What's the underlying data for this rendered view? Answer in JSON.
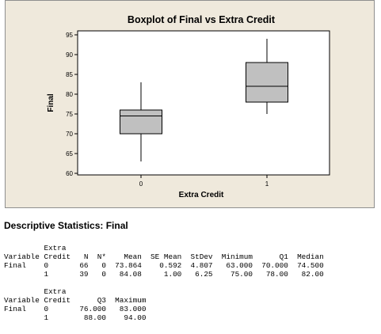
{
  "chart_data": {
    "type": "boxplot",
    "title": "Boxplot of Final vs Extra Credit",
    "xlabel": "Extra Credit",
    "ylabel": "Final",
    "categories": [
      "0",
      "1"
    ],
    "ylim": [
      60,
      95
    ],
    "yticks": [
      "60",
      "65",
      "70",
      "75",
      "80",
      "85",
      "90",
      "95"
    ],
    "series": [
      {
        "category": "0",
        "min": 63.0,
        "q1": 70.0,
        "median": 74.5,
        "q3": 76.0,
        "max": 83.0
      },
      {
        "category": "1",
        "min": 75.0,
        "q1": 78.0,
        "median": 82.0,
        "q3": 88.0,
        "max": 94.0
      }
    ],
    "colors": {
      "panel_background": "#efe9dc",
      "plot_background": "#ffffff",
      "box_fill": "#c0c0c0",
      "line": "#000000"
    }
  },
  "stats": {
    "heading": "Descriptive Statistics: Final",
    "lines": [
      "         Extra",
      "Variable Credit   N  N*    Mean  SE Mean  StDev  Minimum      Q1  Median",
      "Final    0       66   0  73.864    0.592  4.807   63.000  70.000  74.500",
      "         1       39   0   84.08     1.00   6.25    75.00   78.00   82.00",
      "",
      "         Extra",
      "Variable Credit      Q3  Maximum",
      "Final    0       76.000   83.000",
      "         1        88.00    94.00"
    ]
  }
}
